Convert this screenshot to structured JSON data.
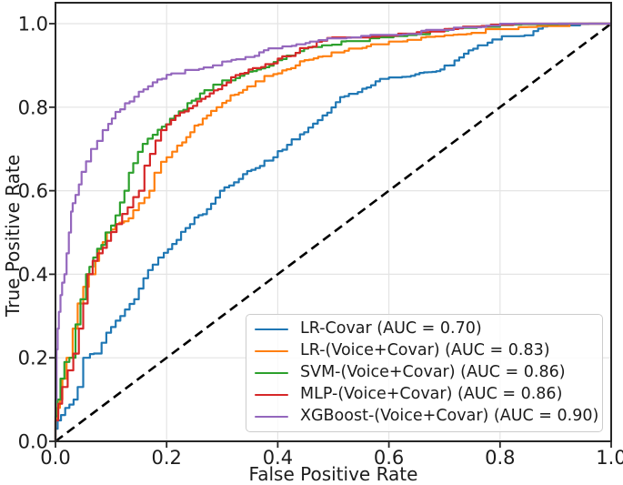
{
  "chart_data": {
    "type": "line",
    "subtype": "roc-curves",
    "title": "",
    "xlabel": "False Positive Rate",
    "ylabel": "True Positive Rate",
    "xlim": [
      0.0,
      1.0
    ],
    "ylim": [
      0.0,
      1.05
    ],
    "x_ticks": [
      "0.0",
      "0.2",
      "0.4",
      "0.6",
      "0.8",
      "1.0"
    ],
    "y_ticks": [
      "0.0",
      "0.2",
      "0.4",
      "0.6",
      "0.8",
      "1.0"
    ],
    "grid": true,
    "legend_position": "lower right",
    "reference_line": {
      "name": "chance-diagonal",
      "style": "dashed",
      "color": "#000000",
      "points": [
        [
          0,
          0
        ],
        [
          1,
          1
        ]
      ]
    },
    "series": [
      {
        "name": "lr-covar",
        "label": "LR-Covar (AUC = 0.70)",
        "auc": 0.7,
        "color": "#1f77b4",
        "points": [
          [
            0,
            0
          ],
          [
            0.004,
            0.03
          ],
          [
            0.01,
            0.05
          ],
          [
            0.025,
            0.08
          ],
          [
            0.04,
            0.1
          ],
          [
            0.05,
            0.13
          ],
          [
            0.062,
            0.2
          ],
          [
            0.083,
            0.21
          ],
          [
            0.1,
            0.26
          ],
          [
            0.125,
            0.3
          ],
          [
            0.15,
            0.34
          ],
          [
            0.175,
            0.41
          ],
          [
            0.195,
            0.44
          ],
          [
            0.21,
            0.46
          ],
          [
            0.25,
            0.52
          ],
          [
            0.28,
            0.556
          ],
          [
            0.304,
            0.6
          ],
          [
            0.33,
            0.62
          ],
          [
            0.36,
            0.65
          ],
          [
            0.4,
            0.68
          ],
          [
            0.425,
            0.71
          ],
          [
            0.455,
            0.74
          ],
          [
            0.489,
            0.78
          ],
          [
            0.52,
            0.824
          ],
          [
            0.544,
            0.832
          ],
          [
            0.6,
            0.865
          ],
          [
            0.663,
            0.882
          ],
          [
            0.7,
            0.89
          ],
          [
            0.718,
            0.9
          ],
          [
            0.735,
            0.919
          ],
          [
            0.76,
            0.94
          ],
          [
            0.795,
            0.962
          ],
          [
            0.828,
            0.966
          ],
          [
            0.86,
            0.97
          ],
          [
            0.877,
            0.988
          ],
          [
            0.92,
            0.99
          ],
          [
            0.96,
            0.995
          ],
          [
            0.995,
            0.995
          ],
          [
            1,
            1
          ]
        ]
      },
      {
        "name": "lr-voice-covar",
        "label": "LR-(Voice+Covar) (AUC = 0.83)",
        "auc": 0.83,
        "color": "#ff7f0e",
        "points": [
          [
            0,
            0
          ],
          [
            0.003,
            0.05
          ],
          [
            0.008,
            0.08
          ],
          [
            0.0125,
            0.1
          ],
          [
            0.02,
            0.15
          ],
          [
            0.031,
            0.2
          ],
          [
            0.04,
            0.27
          ],
          [
            0.05,
            0.33
          ],
          [
            0.06,
            0.37
          ],
          [
            0.072,
            0.4
          ],
          [
            0.085,
            0.46
          ],
          [
            0.1,
            0.5
          ],
          [
            0.115,
            0.52
          ],
          [
            0.14,
            0.534
          ],
          [
            0.16,
            0.57
          ],
          [
            0.178,
            0.6
          ],
          [
            0.19,
            0.643
          ],
          [
            0.21,
            0.68
          ],
          [
            0.228,
            0.708
          ],
          [
            0.25,
            0.74
          ],
          [
            0.28,
            0.78
          ],
          [
            0.3,
            0.8
          ],
          [
            0.33,
            0.83
          ],
          [
            0.36,
            0.85
          ],
          [
            0.4,
            0.879
          ],
          [
            0.44,
            0.9
          ],
          [
            0.489,
            0.922
          ],
          [
            0.52,
            0.93
          ],
          [
            0.56,
            0.942
          ],
          [
            0.6,
            0.949
          ],
          [
            0.65,
            0.958
          ],
          [
            0.7,
            0.965
          ],
          [
            0.74,
            0.969
          ],
          [
            0.8,
            0.984
          ],
          [
            0.85,
            0.986
          ],
          [
            0.9,
            0.99
          ],
          [
            0.95,
            0.996
          ],
          [
            1,
            1
          ]
        ]
      },
      {
        "name": "svm-voice-covar",
        "label": "SVM-(Voice+Covar) (AUC = 0.86)",
        "auc": 0.86,
        "color": "#2ca02c",
        "points": [
          [
            0,
            0
          ],
          [
            0.004,
            0.06
          ],
          [
            0.009,
            0.1
          ],
          [
            0.016,
            0.15
          ],
          [
            0.025,
            0.19
          ],
          [
            0.036,
            0.2
          ],
          [
            0.045,
            0.28
          ],
          [
            0.055,
            0.34
          ],
          [
            0.061,
            0.4
          ],
          [
            0.075,
            0.44
          ],
          [
            0.09,
            0.47
          ],
          [
            0.1,
            0.5
          ],
          [
            0.116,
            0.541
          ],
          [
            0.132,
            0.6
          ],
          [
            0.14,
            0.643
          ],
          [
            0.157,
            0.693
          ],
          [
            0.184,
            0.734
          ],
          [
            0.206,
            0.759
          ],
          [
            0.23,
            0.79
          ],
          [
            0.26,
            0.82
          ],
          [
            0.3,
            0.854
          ],
          [
            0.34,
            0.875
          ],
          [
            0.37,
            0.89
          ],
          [
            0.4,
            0.908
          ],
          [
            0.44,
            0.93
          ],
          [
            0.47,
            0.94
          ],
          [
            0.489,
            0.948
          ],
          [
            0.54,
            0.953
          ],
          [
            0.6,
            0.962
          ],
          [
            0.65,
            0.968
          ],
          [
            0.69,
            0.978
          ],
          [
            0.75,
            0.985
          ],
          [
            0.8,
            0.99
          ],
          [
            0.87,
            0.993
          ],
          [
            0.93,
            0.997
          ],
          [
            1,
            1
          ]
        ]
      },
      {
        "name": "mlp-voice-covar",
        "label": "MLP-(Voice+Covar) (AUC = 0.86)",
        "auc": 0.86,
        "color": "#d62728",
        "points": [
          [
            0,
            0
          ],
          [
            0.005,
            0.05
          ],
          [
            0.012,
            0.09
          ],
          [
            0.022,
            0.13
          ],
          [
            0.032,
            0.17
          ],
          [
            0.042,
            0.21
          ],
          [
            0.05,
            0.27
          ],
          [
            0.058,
            0.33
          ],
          [
            0.067,
            0.4
          ],
          [
            0.085,
            0.45
          ],
          [
            0.1,
            0.48
          ],
          [
            0.12,
            0.52
          ],
          [
            0.14,
            0.56
          ],
          [
            0.16,
            0.6
          ],
          [
            0.17,
            0.66
          ],
          [
            0.19,
            0.72
          ],
          [
            0.2,
            0.745
          ],
          [
            0.24,
            0.79
          ],
          [
            0.27,
            0.82
          ],
          [
            0.3,
            0.843
          ],
          [
            0.34,
            0.88
          ],
          [
            0.37,
            0.89
          ],
          [
            0.4,
            0.905
          ],
          [
            0.44,
            0.93
          ],
          [
            0.47,
            0.945
          ],
          [
            0.489,
            0.959
          ],
          [
            0.55,
            0.962
          ],
          [
            0.6,
            0.968
          ],
          [
            0.65,
            0.973
          ],
          [
            0.7,
            0.978
          ],
          [
            0.75,
            0.988
          ],
          [
            0.8,
            0.993
          ],
          [
            0.85,
            0.995
          ],
          [
            0.9,
            0.999
          ],
          [
            1,
            1
          ]
        ]
      },
      {
        "name": "xgboost-voice-covar",
        "label": "XGBoost-(Voice+Covar) (AUC = 0.90)",
        "auc": 0.9,
        "color": "#9467bd",
        "points": [
          [
            0,
            0
          ],
          [
            0.002,
            0.1
          ],
          [
            0.004,
            0.22
          ],
          [
            0.006,
            0.27
          ],
          [
            0.009,
            0.31
          ],
          [
            0.012,
            0.35
          ],
          [
            0.016,
            0.38
          ],
          [
            0.02,
            0.4
          ],
          [
            0.024,
            0.45
          ],
          [
            0.028,
            0.5
          ],
          [
            0.031,
            0.55
          ],
          [
            0.036,
            0.57
          ],
          [
            0.042,
            0.59
          ],
          [
            0.047,
            0.615
          ],
          [
            0.055,
            0.645
          ],
          [
            0.064,
            0.67
          ],
          [
            0.075,
            0.7
          ],
          [
            0.085,
            0.719
          ],
          [
            0.095,
            0.745
          ],
          [
            0.108,
            0.773
          ],
          [
            0.125,
            0.795
          ],
          [
            0.15,
            0.825
          ],
          [
            0.175,
            0.85
          ],
          [
            0.2,
            0.868
          ],
          [
            0.25,
            0.885
          ],
          [
            0.3,
            0.9
          ],
          [
            0.35,
            0.92
          ],
          [
            0.4,
            0.937
          ],
          [
            0.45,
            0.95
          ],
          [
            0.489,
            0.959
          ],
          [
            0.55,
            0.963
          ],
          [
            0.6,
            0.97
          ],
          [
            0.65,
            0.975
          ],
          [
            0.7,
            0.98
          ],
          [
            0.75,
            0.986
          ],
          [
            0.8,
            0.993
          ],
          [
            0.85,
            0.995
          ],
          [
            0.9,
            0.997
          ],
          [
            1,
            1
          ]
        ]
      }
    ],
    "style_colors": {
      "grid": "#e4e4e4",
      "spine": "#262626",
      "text": "#1c1c1c"
    }
  }
}
